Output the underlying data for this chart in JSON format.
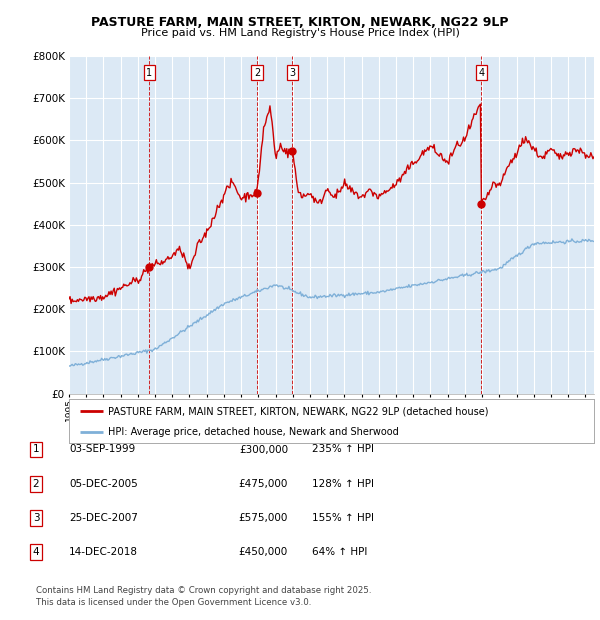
{
  "title": "PASTURE FARM, MAIN STREET, KIRTON, NEWARK, NG22 9LP",
  "subtitle": "Price paid vs. HM Land Registry's House Price Index (HPI)",
  "bg_color": "#dce9f5",
  "house_color": "#cc0000",
  "hpi_color": "#7fb0d8",
  "ylim": [
    0,
    800000
  ],
  "yticks": [
    0,
    100000,
    200000,
    300000,
    400000,
    500000,
    600000,
    700000,
    800000
  ],
  "ytick_labels": [
    "£0",
    "£100K",
    "£200K",
    "£300K",
    "£400K",
    "£500K",
    "£600K",
    "£700K",
    "£800K"
  ],
  "sale_points": [
    {
      "num": 1,
      "date": "03-SEP-1999",
      "price": 300000,
      "pct": "235%",
      "x_year": 1999.67
    },
    {
      "num": 2,
      "date": "05-DEC-2005",
      "price": 475000,
      "pct": "128%",
      "x_year": 2005.92
    },
    {
      "num": 3,
      "date": "25-DEC-2007",
      "price": 575000,
      "pct": "155%",
      "x_year": 2007.98
    },
    {
      "num": 4,
      "date": "14-DEC-2018",
      "price": 450000,
      "pct": "64%",
      "x_year": 2018.95
    }
  ],
  "legend_house": "PASTURE FARM, MAIN STREET, KIRTON, NEWARK, NG22 9LP (detached house)",
  "legend_hpi": "HPI: Average price, detached house, Newark and Sherwood",
  "footnote": "Contains HM Land Registry data © Crown copyright and database right 2025.\nThis data is licensed under the Open Government Licence v3.0.",
  "xmin": 1995,
  "xmax": 2025.5
}
